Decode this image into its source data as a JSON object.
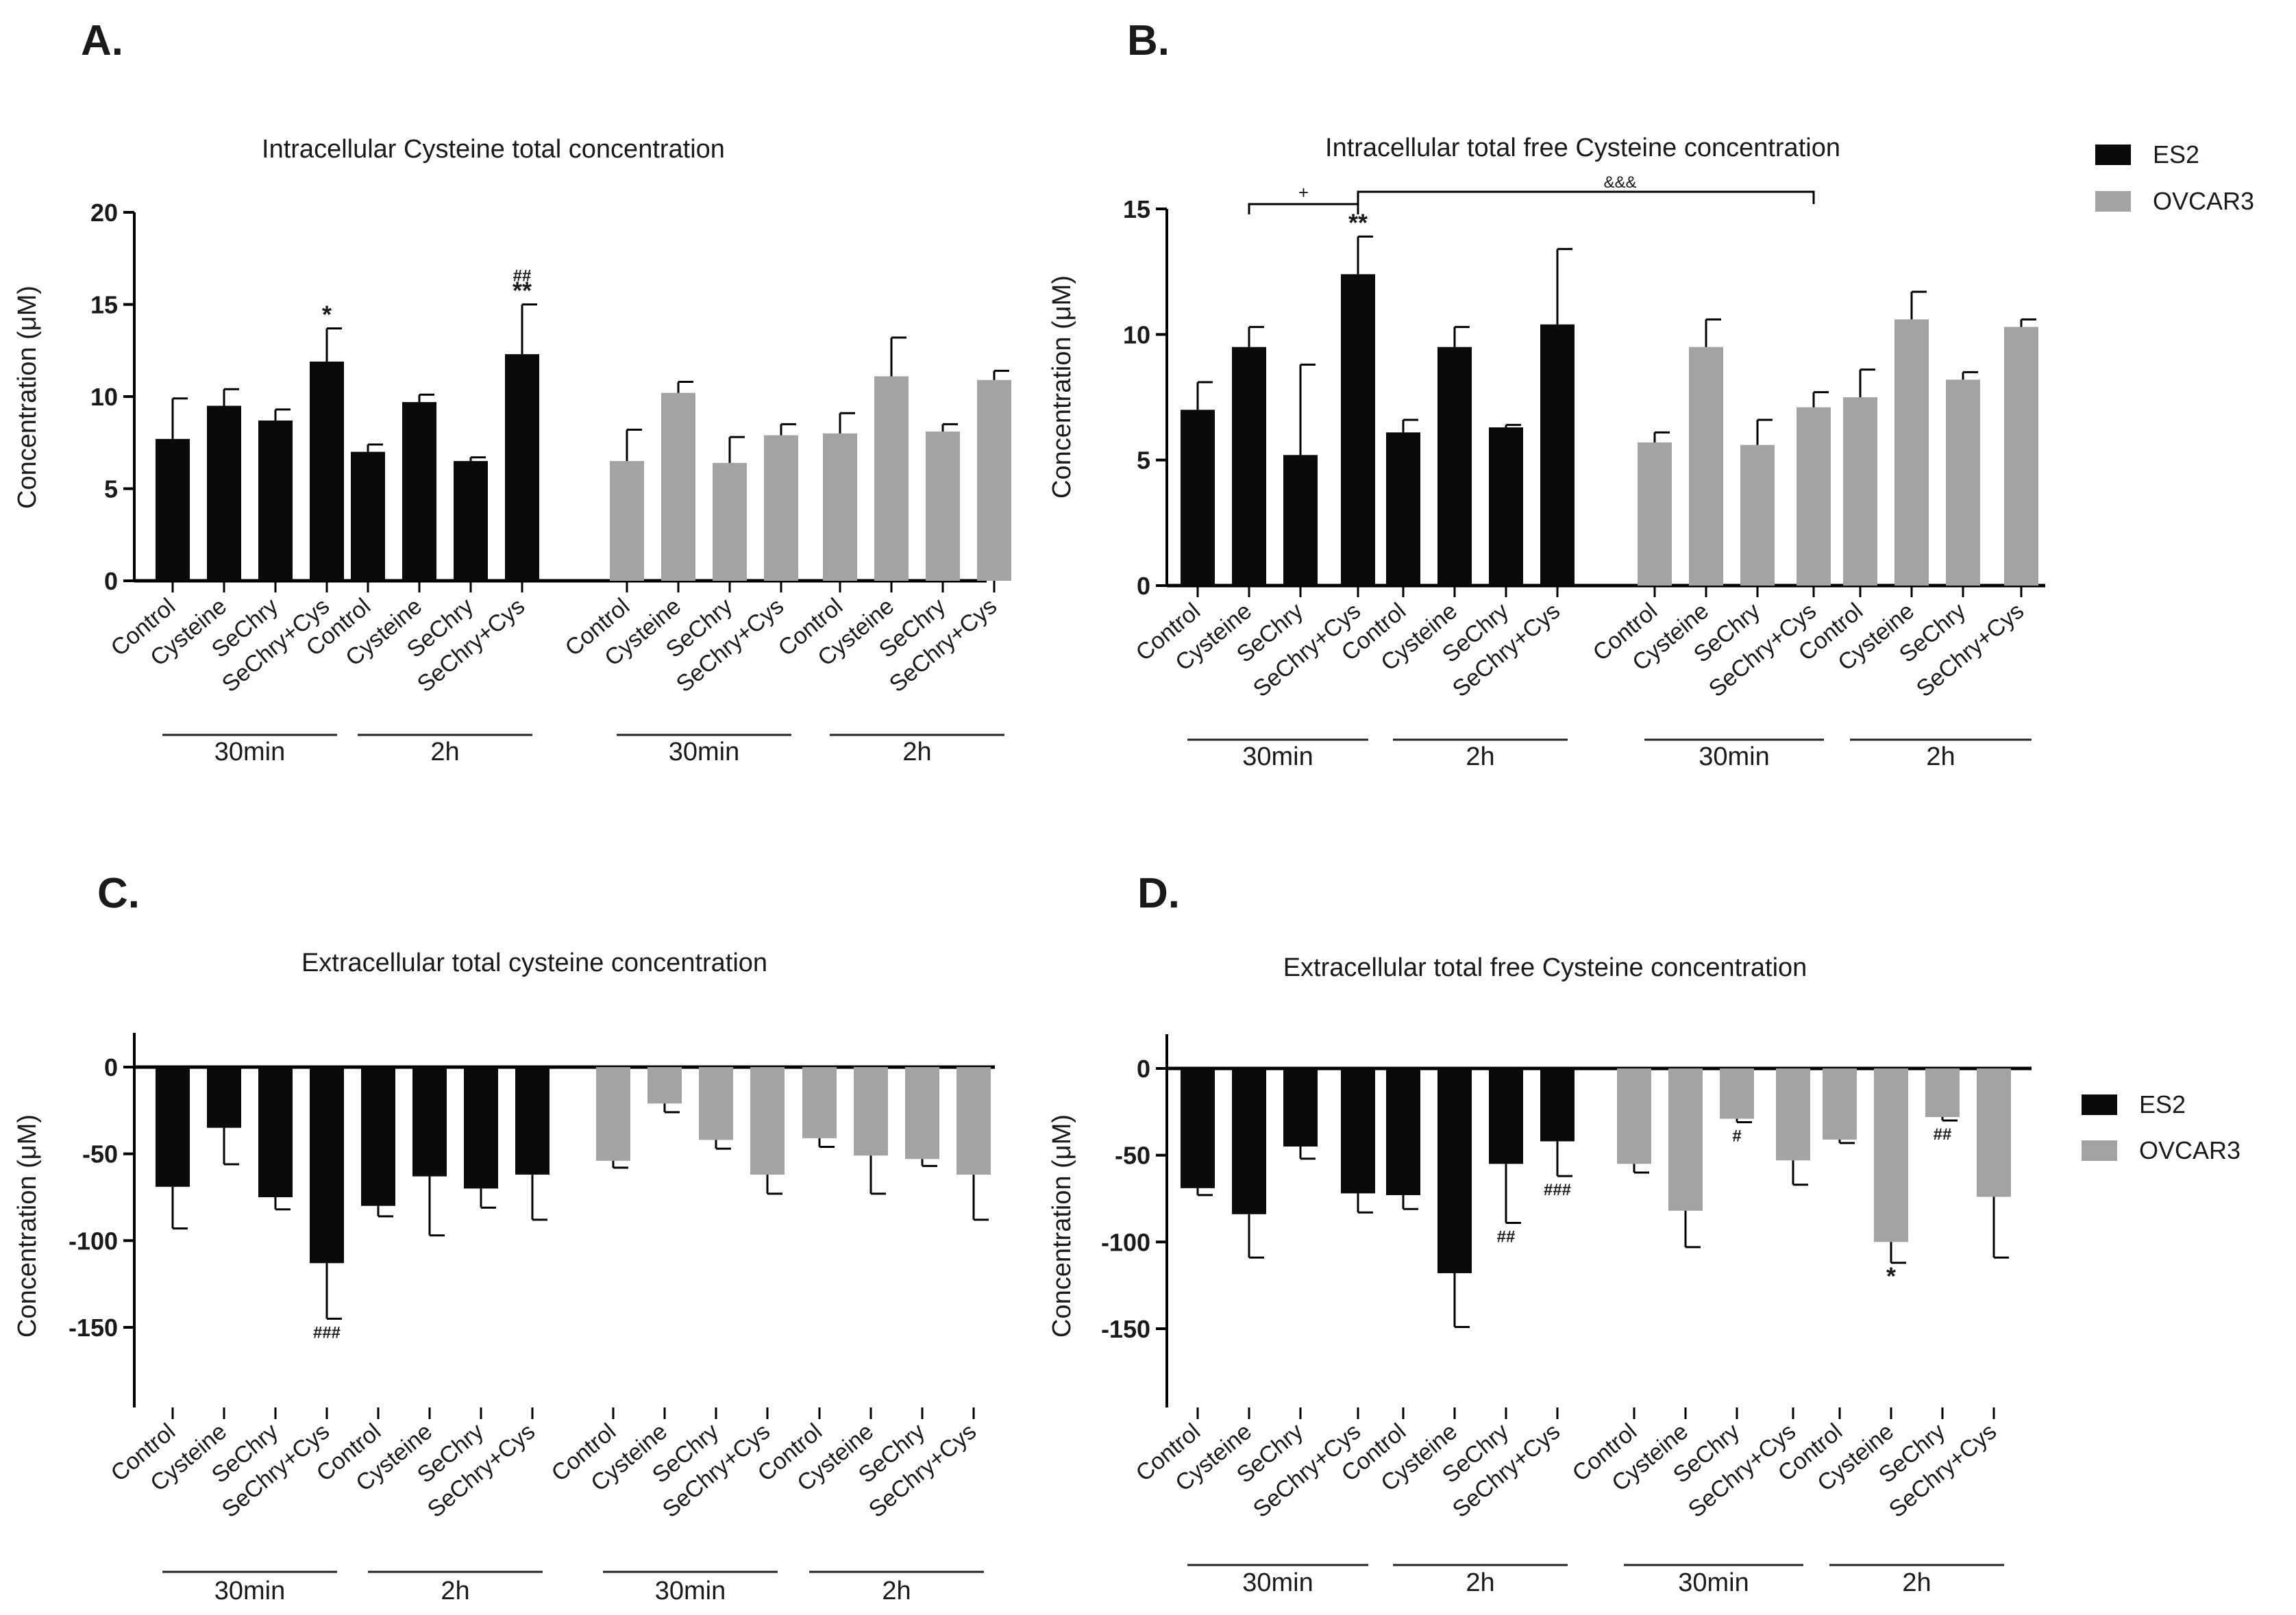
{
  "colors": {
    "ES2": "#0a0a0a",
    "OVCAR3": "#a3a3a3",
    "axis": "#000000",
    "text": "#1a1a1a"
  },
  "category_labels": [
    "Control",
    "Cysteine",
    "SeChry",
    "SeChry+Cys"
  ],
  "legend": [
    {
      "name": "ES2",
      "color": "#0a0a0a"
    },
    {
      "name": "OVCAR3",
      "color": "#a3a3a3"
    }
  ],
  "chart_data": [
    {
      "panel": "A.",
      "type": "bar",
      "title": "Intracellular Cysteine total concentration",
      "ylabel": "Concentration (μM)",
      "ylim": [
        0,
        20
      ],
      "yticks": [
        0,
        5,
        10,
        15,
        20
      ],
      "groups": [
        {
          "cell_line": "ES2",
          "time": "30min",
          "values": [
            7.7,
            9.5,
            8.7,
            11.9
          ],
          "errors": [
            2.2,
            0.9,
            0.6,
            1.8
          ],
          "annotations": [
            "",
            "",
            "",
            "*"
          ]
        },
        {
          "cell_line": "ES2",
          "time": "2h",
          "values": [
            7.0,
            9.7,
            6.5,
            12.3
          ],
          "errors": [
            0.4,
            0.4,
            0.2,
            2.7
          ],
          "annotations": [
            "",
            "",
            "",
            "##\n**"
          ]
        },
        {
          "cell_line": "OVCAR3",
          "time": "30min",
          "values": [
            6.5,
            10.2,
            6.4,
            7.9
          ],
          "errors": [
            1.7,
            0.6,
            1.4,
            0.6
          ],
          "annotations": [
            "",
            "",
            "",
            ""
          ]
        },
        {
          "cell_line": "OVCAR3",
          "time": "2h",
          "values": [
            8.0,
            11.1,
            8.1,
            10.9
          ],
          "errors": [
            1.1,
            2.1,
            0.4,
            0.5
          ],
          "annotations": [
            "",
            "",
            "",
            ""
          ]
        }
      ]
    },
    {
      "panel": "B.",
      "type": "bar",
      "title": "Intracellular total free Cysteine concentration",
      "ylabel": "Concentration (μM)",
      "ylim": [
        0,
        15
      ],
      "yticks": [
        0,
        5,
        10,
        15
      ],
      "brackets": [
        {
          "label": "+",
          "from": "Cysteine 30min ES2",
          "to": "SeChry+Cys 30min ES2"
        },
        {
          "label": "&&&",
          "from": "SeChry+Cys 30min ES2",
          "to": "SeChry+Cys 30min OVCAR3"
        }
      ],
      "groups": [
        {
          "cell_line": "ES2",
          "time": "30min",
          "values": [
            7.0,
            9.5,
            5.2,
            12.4
          ],
          "errors": [
            1.1,
            0.8,
            3.6,
            1.5
          ],
          "annotations": [
            "",
            "",
            "",
            "**"
          ]
        },
        {
          "cell_line": "ES2",
          "time": "2h",
          "values": [
            6.1,
            9.5,
            6.3,
            10.4
          ],
          "errors": [
            0.5,
            0.8,
            0.1,
            3.0
          ],
          "annotations": [
            "",
            "",
            "",
            ""
          ]
        },
        {
          "cell_line": "OVCAR3",
          "time": "30min",
          "values": [
            5.7,
            9.5,
            5.6,
            7.1
          ],
          "errors": [
            0.4,
            1.1,
            1.0,
            0.6
          ],
          "annotations": [
            "",
            "",
            "",
            ""
          ]
        },
        {
          "cell_line": "OVCAR3",
          "time": "2h",
          "values": [
            7.5,
            10.6,
            8.2,
            10.3
          ],
          "errors": [
            1.1,
            1.1,
            0.3,
            0.3
          ],
          "annotations": [
            "",
            "",
            "",
            ""
          ]
        }
      ]
    },
    {
      "panel": "C.",
      "type": "bar",
      "title": "Extracellular total cysteine concentration",
      "ylabel": "Concentration (μM)",
      "ylim": [
        -195,
        20
      ],
      "yticks": [
        0,
        -50,
        -100,
        -150
      ],
      "groups": [
        {
          "cell_line": "ES2",
          "time": "30min",
          "values": [
            -69,
            -35,
            -75,
            -113
          ],
          "errors": [
            24,
            21,
            7,
            32
          ],
          "annotations": [
            "",
            "",
            "",
            "###"
          ]
        },
        {
          "cell_line": "ES2",
          "time": "2h",
          "values": [
            -80,
            -63,
            -70,
            -62
          ],
          "errors": [
            6,
            34,
            11,
            26
          ],
          "annotations": [
            "",
            "",
            "",
            ""
          ]
        },
        {
          "cell_line": "OVCAR3",
          "time": "30min",
          "values": [
            -54,
            -21,
            -42,
            -62
          ],
          "errors": [
            4,
            5,
            5,
            11
          ],
          "annotations": [
            "",
            "",
            "",
            ""
          ]
        },
        {
          "cell_line": "OVCAR3",
          "time": "2h",
          "values": [
            -41,
            -51,
            -53,
            -62
          ],
          "errors": [
            5,
            22,
            4,
            26
          ],
          "annotations": [
            "",
            "",
            "",
            ""
          ]
        }
      ]
    },
    {
      "panel": "D.",
      "type": "bar",
      "title": "Extracellular total free Cysteine concentration",
      "ylabel": "Concentration (μM)",
      "ylim": [
        -195,
        20
      ],
      "yticks": [
        0,
        -50,
        -100,
        -150
      ],
      "groups": [
        {
          "cell_line": "ES2",
          "time": "30min",
          "values": [
            -69,
            -84,
            -45,
            -72
          ],
          "errors": [
            4,
            25,
            7,
            11
          ],
          "annotations": [
            "",
            "",
            "",
            ""
          ]
        },
        {
          "cell_line": "ES2",
          "time": "2h",
          "values": [
            -73,
            -118,
            -55,
            -42
          ],
          "errors": [
            8,
            31,
            34,
            20
          ],
          "annotations": [
            "",
            "",
            "##",
            "###"
          ]
        },
        {
          "cell_line": "OVCAR3",
          "time": "30min",
          "values": [
            -55,
            -82,
            -29,
            -53
          ],
          "errors": [
            5,
            21,
            2,
            14
          ],
          "annotations": [
            "",
            "",
            "#",
            ""
          ]
        },
        {
          "cell_line": "OVCAR3",
          "time": "2h",
          "values": [
            -41,
            -100,
            -28,
            -74
          ],
          "errors": [
            2,
            12,
            2,
            35
          ],
          "annotations": [
            "",
            "*",
            "##",
            ""
          ]
        }
      ]
    }
  ]
}
